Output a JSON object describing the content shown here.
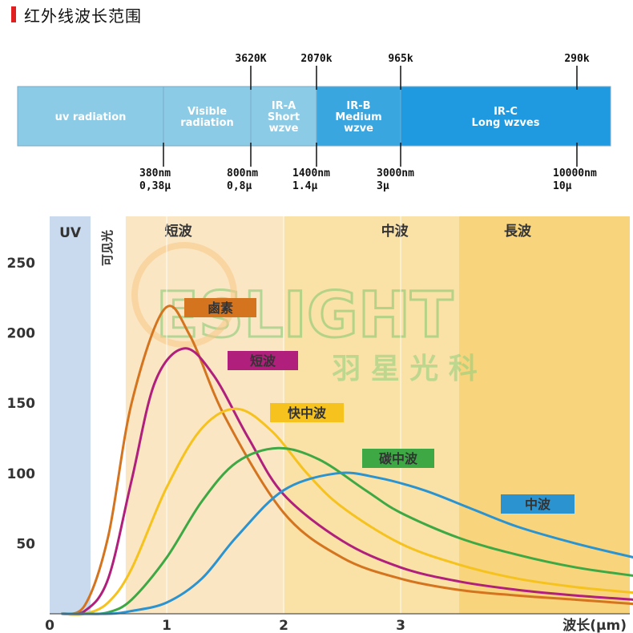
{
  "page": {
    "title": "红外线波长范围",
    "accent_color": "#e02020"
  },
  "spectrum_bar": {
    "segments": [
      {
        "lines": [
          "uv radiation"
        ],
        "color": "#8ccbe6"
      },
      {
        "lines": [
          "Visible",
          "radiation"
        ],
        "color": "#8ccbe6"
      },
      {
        "lines": [
          "IR-A",
          "Short",
          "wzve"
        ],
        "color": "#8ccbe6"
      },
      {
        "lines": [
          "IR-B",
          "Medium",
          "wzve"
        ],
        "color": "#3aa6e0"
      },
      {
        "lines": [
          "IR-C",
          "Long wzves"
        ],
        "color": "#1f9ae0"
      }
    ],
    "top_labels": [
      "3620K",
      "2070k",
      "965k",
      "290k"
    ],
    "bottom_labels": [
      {
        "line1": "380nm",
        "line2": "0,38μ"
      },
      {
        "line1": "800nm",
        "line2": "0,8μ"
      },
      {
        "line1": "1400nm",
        "line2": "1.4μ"
      },
      {
        "line1": "3000nm",
        "line2": "3μ"
      },
      {
        "line1": "10000nm",
        "line2": "10μ"
      }
    ]
  },
  "watermark": {
    "brand": "ESLIGHT",
    "cn": "羽 星 光 科",
    "color": "#7cc86e"
  },
  "chart_data": {
    "type": "line",
    "xlabel": "波长(μm)",
    "ylabel": "",
    "xlim": [
      0,
      5.0
    ],
    "ylim": [
      0,
      270
    ],
    "x_ticks": [
      0,
      1,
      2,
      3
    ],
    "y_ticks": [
      50,
      100,
      150,
      200,
      250
    ],
    "grid": "vertical lines at x = 1, 2, 3",
    "regions": [
      {
        "label": "UV",
        "x_start": 0,
        "x_end": 0.35,
        "color": "#c9d9ee"
      },
      {
        "label": "可见光",
        "x_start": 0.35,
        "x_end": 0.65,
        "color": "#ffffff"
      },
      {
        "label": "短波",
        "x_start": 0.65,
        "x_end": 2.0,
        "color": "#fbe6c4"
      },
      {
        "label": "中波",
        "x_start": 2.0,
        "x_end": 3.5,
        "color": "#fae1a6"
      },
      {
        "label": "長波",
        "x_start": 3.5,
        "x_end": 5.0,
        "color": "#f8d47c"
      }
    ],
    "series": [
      {
        "name": "鹵素",
        "color": "#d4741e",
        "peak_x": 0.98,
        "peak_y": 217,
        "x": [
          0.1,
          0.3,
          0.5,
          0.7,
          0.98,
          1.2,
          1.5,
          2.0,
          2.5,
          3.0,
          3.5,
          4.0,
          4.5,
          5.0
        ],
        "y": [
          0,
          6,
          55,
          150,
          217,
          198,
          140,
          72,
          40,
          25,
          17,
          13,
          10,
          7
        ]
      },
      {
        "name": "短波",
        "color": "#b01f7c",
        "peak_x": 1.15,
        "peak_y": 189,
        "x": [
          0.1,
          0.3,
          0.5,
          0.7,
          0.9,
          1.15,
          1.4,
          1.7,
          2.0,
          2.5,
          3.0,
          3.5,
          4.0,
          4.5,
          5.0
        ],
        "y": [
          0,
          2,
          25,
          95,
          165,
          189,
          170,
          125,
          85,
          52,
          33,
          23,
          17,
          13,
          10
        ]
      },
      {
        "name": "快中波",
        "color": "#f5c21e",
        "peak_x": 1.6,
        "peak_y": 146,
        "x": [
          0.1,
          0.3,
          0.5,
          0.7,
          1.0,
          1.3,
          1.6,
          1.9,
          2.2,
          2.5,
          3.0,
          3.5,
          4.0,
          4.5,
          5.0
        ],
        "y": [
          0,
          0,
          8,
          32,
          90,
          132,
          146,
          130,
          100,
          76,
          50,
          35,
          25,
          19,
          15
        ]
      },
      {
        "name": "碳中波",
        "color": "#3ea845",
        "peak_x": 1.95,
        "peak_y": 118,
        "x": [
          0.1,
          0.3,
          0.5,
          0.7,
          1.0,
          1.3,
          1.6,
          1.95,
          2.3,
          2.7,
          3.0,
          3.5,
          4.0,
          4.5,
          5.0
        ],
        "y": [
          0,
          0,
          1,
          10,
          40,
          80,
          108,
          118,
          110,
          88,
          72,
          54,
          42,
          33,
          27
        ]
      },
      {
        "name": "中波",
        "color": "#2b93cf",
        "peak_x": 2.45,
        "peak_y": 100,
        "x": [
          0.1,
          0.5,
          0.7,
          1.0,
          1.3,
          1.6,
          2.0,
          2.45,
          2.8,
          3.2,
          3.6,
          4.0,
          4.5,
          5.0
        ],
        "y": [
          0,
          0,
          2,
          8,
          25,
          55,
          88,
          100,
          97,
          88,
          75,
          62,
          50,
          40
        ]
      }
    ]
  }
}
